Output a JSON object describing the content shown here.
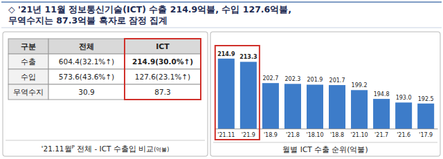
{
  "header": {
    "lines": [
      "◇ '21년 11월 정보통신기술(ICT) 수출 214.9억불, 수입 127.6억불,",
      "무역수지는 87.3억불 흑자로 잠정 집계"
    ]
  },
  "table": {
    "columns": [
      "구분",
      "전체",
      "ICT"
    ],
    "rows": [
      [
        "수출",
        "604.4(32.1%↑)",
        "214.9(30.0%↑)"
      ],
      [
        "수입",
        "573.6(43.6%↑)",
        "127.6(23.1%↑)"
      ],
      [
        "무역수지",
        "30.9",
        "87.3"
      ]
    ],
    "caption": {
      "main": "'21.11월",
      "superscript": "P",
      "rest": " 전체 - ICT 수출입 비교",
      "unit": "(억불)"
    }
  },
  "chart_data": {
    "type": "bar",
    "title": "월별 ICT 수출 순위(억불)",
    "categories": [
      "'21.11",
      "'21.9",
      "'18.9",
      "'21.8",
      "'18.10",
      "'18.8",
      "'21.10",
      "'21.7",
      "'21.6",
      "'17.9"
    ],
    "values": [
      214.9,
      213.3,
      202.7,
      202.3,
      201.9,
      201.7,
      199.2,
      194.8,
      193.0,
      192.5
    ],
    "value_labels": [
      "214.9",
      "213.3",
      "202.7",
      "202.3",
      "201.9",
      "201.7",
      "199.2",
      "194.8",
      "193.0",
      "192.5"
    ],
    "color": "#3d7cc9",
    "ylim": [
      180,
      220
    ],
    "data_labels": true,
    "tick_labels": "x"
  }
}
